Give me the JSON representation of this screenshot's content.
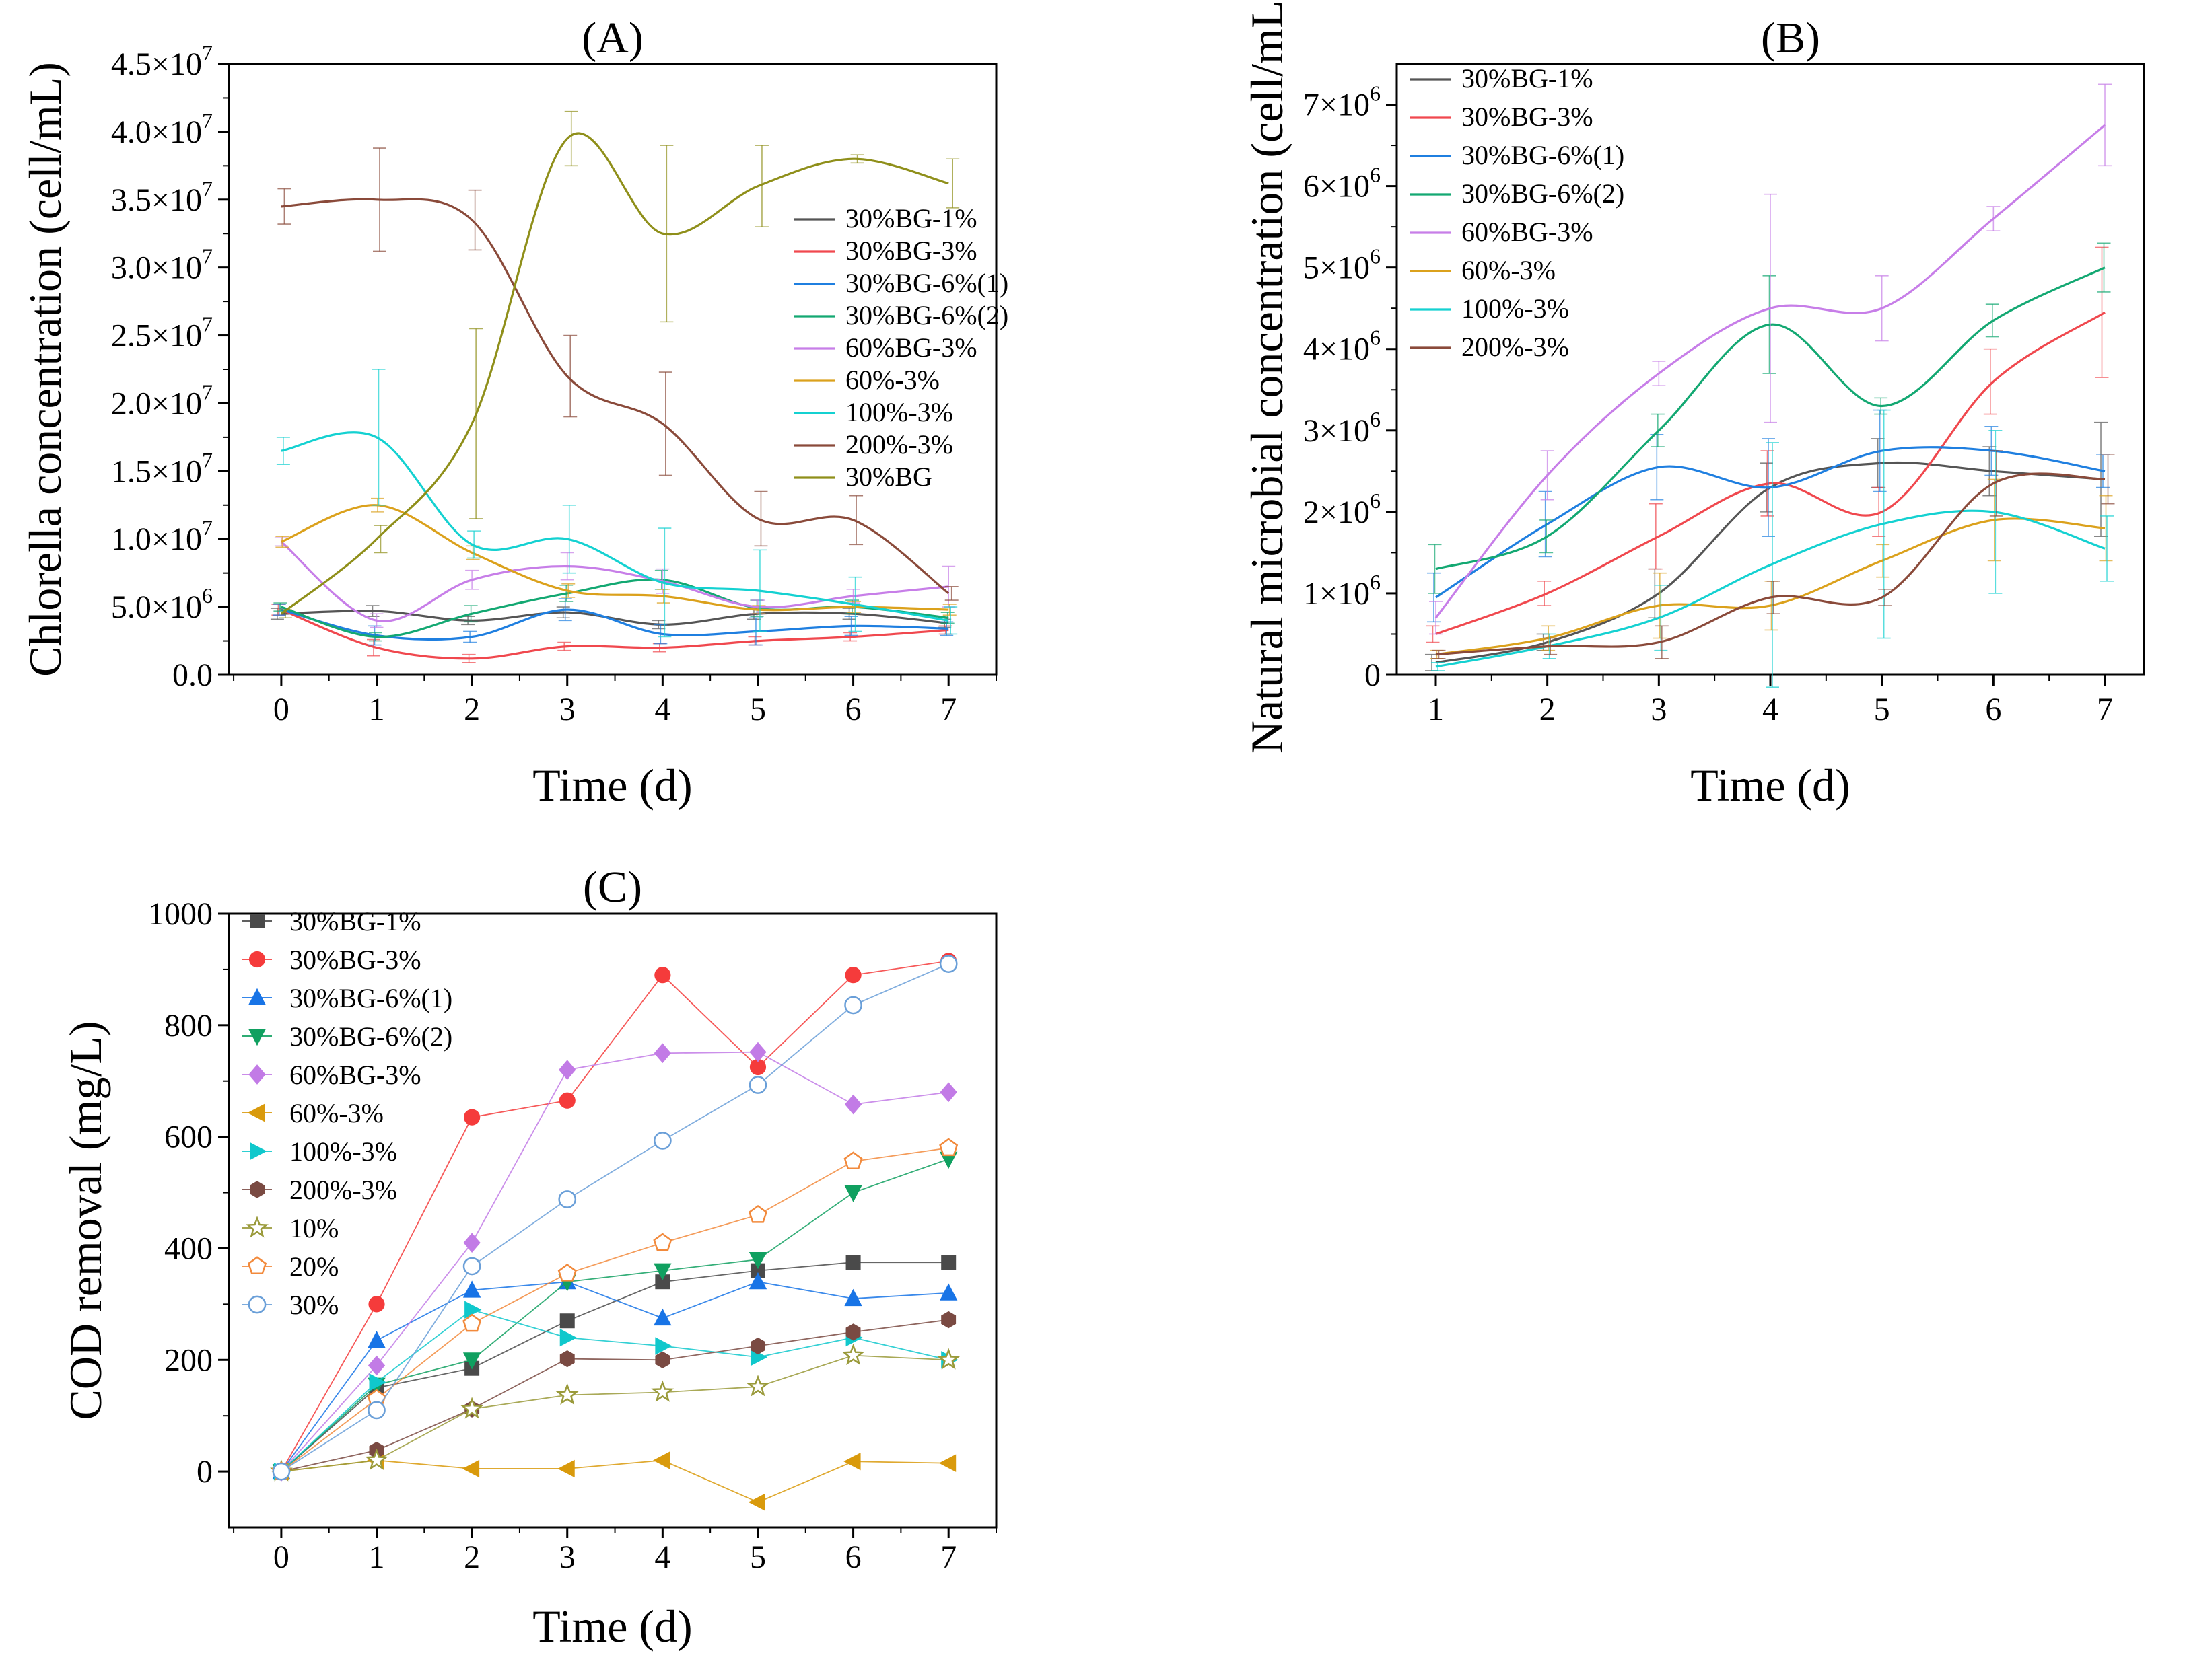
{
  "figure": {
    "description_free": true
  },
  "chart_data": [
    {
      "id": "A",
      "type": "line",
      "title": "(A)",
      "xlabel": "Time (d)",
      "ylabel": "Chlorella concentration (cell/mL)",
      "x": [
        0,
        1,
        2,
        3,
        4,
        5,
        6,
        7
      ],
      "xlim": [
        -0.55,
        7.5
      ],
      "ylim": [
        0,
        45000000
      ],
      "xticks": [
        "0",
        "1",
        "2",
        "3",
        "4",
        "5",
        "6",
        "7"
      ],
      "yticks": [
        {
          "value": 0,
          "mantissa": "0.0",
          "exp": ""
        },
        {
          "value": 5000000,
          "mantissa": "5.0×10",
          "exp": "6"
        },
        {
          "value": 10000000,
          "mantissa": "1.0×10",
          "exp": "7"
        },
        {
          "value": 15000000,
          "mantissa": "1.5×10",
          "exp": "7"
        },
        {
          "value": 20000000,
          "mantissa": "2.0×10",
          "exp": "7"
        },
        {
          "value": 25000000,
          "mantissa": "2.5×10",
          "exp": "7"
        },
        {
          "value": 30000000,
          "mantissa": "3.0×10",
          "exp": "7"
        },
        {
          "value": 35000000,
          "mantissa": "3.5×10",
          "exp": "7"
        },
        {
          "value": 40000000,
          "mantissa": "4.0×10",
          "exp": "7"
        },
        {
          "value": 45000000,
          "mantissa": "4.5×10",
          "exp": "7"
        }
      ],
      "legend_position": "right-middle",
      "series": [
        {
          "name": "30%BG-1%",
          "color": "#555555",
          "values": [
            4500000,
            4700000,
            4000000,
            4600000,
            3700000,
            4500000,
            4500000,
            3800000
          ],
          "errors": [
            400000,
            400000,
            300000,
            400000,
            300000,
            400000,
            400000,
            300000
          ]
        },
        {
          "name": "30%BG-3%",
          "color": "#f0484e",
          "values": [
            4800000,
            2000000,
            1200000,
            2100000,
            2000000,
            2500000,
            2800000,
            3300000
          ],
          "errors": [
            400000,
            600000,
            300000,
            300000,
            300000,
            300000,
            300000,
            300000
          ]
        },
        {
          "name": "30%BG-6%(1)",
          "color": "#1f7fe0",
          "values": [
            4800000,
            2900000,
            2800000,
            4800000,
            3000000,
            3200000,
            3600000,
            3400000
          ],
          "errors": [
            400000,
            700000,
            400000,
            800000,
            700000,
            1000000,
            700000,
            500000
          ]
        },
        {
          "name": "30%BG-6%(2)",
          "color": "#13a872",
          "values": [
            5000000,
            2800000,
            4500000,
            6000000,
            7000000,
            4900000,
            5000000,
            4200000
          ],
          "errors": [
            300000,
            300000,
            600000,
            600000,
            700000,
            600000,
            500000,
            400000
          ]
        },
        {
          "name": "60%BG-3%",
          "color": "#c77ee8",
          "values": [
            9800000,
            4000000,
            7000000,
            8000000,
            6900000,
            5000000,
            5800000,
            6500000
          ],
          "errors": [
            300000,
            500000,
            700000,
            1000000,
            900000,
            500000,
            500000,
            1500000
          ]
        },
        {
          "name": "60%-3%",
          "color": "#dba11c",
          "values": [
            9800000,
            12500000,
            9000000,
            6200000,
            5800000,
            4800000,
            5000000,
            4800000
          ],
          "errors": [
            400000,
            500000,
            500000,
            500000,
            500000,
            300000,
            400000,
            400000
          ]
        },
        {
          "name": "100%-3%",
          "color": "#14d1d1",
          "values": [
            16500000,
            17500000,
            9600000,
            10000000,
            6800000,
            6200000,
            5200000,
            4000000
          ],
          "errors": [
            1000000,
            5000000,
            1000000,
            2500000,
            4000000,
            3000000,
            2000000,
            1000000
          ]
        },
        {
          "name": "200%-3%",
          "color": "#8a4a3a",
          "values": [
            34500000,
            35000000,
            33500000,
            22000000,
            18500000,
            11500000,
            11400000,
            6000000
          ],
          "errors": [
            1300000,
            3800000,
            2200000,
            3000000,
            3800000,
            2000000,
            1800000,
            500000
          ]
        },
        {
          "name": "30%BG",
          "color": "#8f8f1a",
          "values": [
            4500000,
            10000000,
            18500000,
            39500000,
            32500000,
            36000000,
            38000000,
            36200000
          ],
          "errors": [
            300000,
            1000000,
            7000000,
            2000000,
            6500000,
            3000000,
            300000,
            1800000
          ]
        }
      ]
    },
    {
      "id": "B",
      "type": "line",
      "title": "(B)",
      "xlabel": "Time (d)",
      "ylabel": "Natural microbial concentration (cell/mL)",
      "x": [
        1,
        2,
        3,
        4,
        5,
        6,
        7
      ],
      "xlim": [
        0.65,
        7.35
      ],
      "ylim": [
        0,
        7500000
      ],
      "xticks": [
        "1",
        "2",
        "3",
        "4",
        "5",
        "6",
        "7"
      ],
      "yticks": [
        {
          "value": 0,
          "mantissa": "0",
          "exp": ""
        },
        {
          "value": 1000000,
          "mantissa": "1×10",
          "exp": "6"
        },
        {
          "value": 2000000,
          "mantissa": "2×10",
          "exp": "6"
        },
        {
          "value": 3000000,
          "mantissa": "3×10",
          "exp": "6"
        },
        {
          "value": 4000000,
          "mantissa": "4×10",
          "exp": "6"
        },
        {
          "value": 5000000,
          "mantissa": "5×10",
          "exp": "6"
        },
        {
          "value": 6000000,
          "mantissa": "6×10",
          "exp": "6"
        },
        {
          "value": 7000000,
          "mantissa": "7×10",
          "exp": "6"
        }
      ],
      "legend_position": "top-left",
      "series": [
        {
          "name": "30%BG-1%",
          "color": "#555555",
          "values": [
            150000,
            400000,
            1000000,
            2300000,
            2600000,
            2500000,
            2400000
          ],
          "errors": [
            100000,
            100000,
            300000,
            300000,
            300000,
            300000,
            700000
          ]
        },
        {
          "name": "30%BG-3%",
          "color": "#f0484e",
          "values": [
            500000,
            1000000,
            1700000,
            2350000,
            2000000,
            3600000,
            4450000
          ],
          "errors": [
            100000,
            150000,
            400000,
            400000,
            300000,
            400000,
            800000
          ]
        },
        {
          "name": "30%BG-6%(1)",
          "color": "#1f7fe0",
          "values": [
            950000,
            1850000,
            2550000,
            2300000,
            2750000,
            2750000,
            2500000
          ],
          "errors": [
            300000,
            400000,
            400000,
            600000,
            500000,
            300000,
            200000
          ]
        },
        {
          "name": "30%BG-6%(2)",
          "color": "#13a872",
          "values": [
            1300000,
            1700000,
            3000000,
            4300000,
            3300000,
            4350000,
            5000000
          ],
          "errors": [
            300000,
            200000,
            200000,
            600000,
            100000,
            200000,
            300000
          ]
        },
        {
          "name": "60%BG-3%",
          "color": "#c77ee8",
          "values": [
            700000,
            2450000,
            3700000,
            4500000,
            4500000,
            5600000,
            6750000
          ],
          "errors": [
            200000,
            300000,
            150000,
            1400000,
            400000,
            150000,
            500000
          ]
        },
        {
          "name": "60%-3%",
          "color": "#dba11c",
          "values": [
            250000,
            450000,
            850000,
            850000,
            1400000,
            1900000,
            1800000
          ],
          "errors": [
            50000,
            150000,
            400000,
            300000,
            200000,
            500000,
            400000
          ]
        },
        {
          "name": "100%-3%",
          "color": "#14d1d1",
          "values": [
            100000,
            350000,
            700000,
            1350000,
            1850000,
            2000000,
            1550000
          ],
          "errors": [
            50000,
            150000,
            400000,
            1500000,
            1400000,
            1000000,
            400000
          ]
        },
        {
          "name": "200%-3%",
          "color": "#8a4a3a",
          "values": [
            250000,
            350000,
            400000,
            950000,
            950000,
            2350000,
            2400000
          ],
          "errors": [
            50000,
            100000,
            200000,
            200000,
            100000,
            400000,
            300000
          ]
        }
      ]
    },
    {
      "id": "C",
      "type": "scatter",
      "title": "(C)",
      "xlabel": "Time (d)",
      "ylabel": "COD removal (mg/L)",
      "x": [
        0,
        1,
        2,
        3,
        4,
        5,
        6,
        7
      ],
      "xlim": [
        -0.55,
        7.5
      ],
      "ylim": [
        -100,
        1000
      ],
      "xticks": [
        "0",
        "1",
        "2",
        "3",
        "4",
        "5",
        "6",
        "7"
      ],
      "yticks": [
        {
          "value": 0,
          "mantissa": "0",
          "exp": ""
        },
        {
          "value": 200,
          "mantissa": "200",
          "exp": ""
        },
        {
          "value": 400,
          "mantissa": "400",
          "exp": ""
        },
        {
          "value": 600,
          "mantissa": "600",
          "exp": ""
        },
        {
          "value": 800,
          "mantissa": "800",
          "exp": ""
        },
        {
          "value": 1000,
          "mantissa": "1000",
          "exp": ""
        }
      ],
      "legend_position": "top-left",
      "series": [
        {
          "name": "30%BG-1%",
          "color": "#4a4a4a",
          "marker": "square",
          "values": [
            0,
            150,
            185,
            270,
            340,
            360,
            375,
            375
          ]
        },
        {
          "name": "30%BG-3%",
          "color": "#f53b3b",
          "marker": "circle",
          "values": [
            0,
            300,
            635,
            665,
            890,
            725,
            890,
            915
          ]
        },
        {
          "name": "30%BG-6%(1)",
          "color": "#1874e6",
          "marker": "triangle-up",
          "values": [
            0,
            235,
            325,
            340,
            275,
            340,
            310,
            320
          ]
        },
        {
          "name": "30%BG-6%(2)",
          "color": "#10a060",
          "marker": "triangle-down",
          "values": [
            0,
            155,
            200,
            340,
            360,
            380,
            500,
            560
          ]
        },
        {
          "name": "60%BG-3%",
          "color": "#c27be6",
          "marker": "diamond",
          "values": [
            0,
            190,
            410,
            720,
            750,
            752,
            658,
            680
          ]
        },
        {
          "name": "60%-3%",
          "color": "#d99a0c",
          "marker": "triangle-left",
          "values": [
            0,
            20,
            5,
            5,
            20,
            -55,
            18,
            15
          ]
        },
        {
          "name": "100%-3%",
          "color": "#10c8cc",
          "marker": "triangle-right",
          "values": [
            0,
            160,
            290,
            240,
            225,
            205,
            240,
            200
          ]
        },
        {
          "name": "200%-3%",
          "color": "#7a4a42",
          "marker": "hexagon",
          "values": [
            0,
            38,
            112,
            202,
            200,
            225,
            250,
            272
          ]
        },
        {
          "name": "10%",
          "color": "#9a9a3a",
          "marker": "star-open",
          "values": [
            0,
            20,
            112,
            137,
            142,
            152,
            208,
            200
          ]
        },
        {
          "name": "20%",
          "color": "#f28a3c",
          "marker": "pentagon-open",
          "values": [
            0,
            130,
            265,
            355,
            410,
            460,
            556,
            580
          ]
        },
        {
          "name": "30%",
          "color": "#6a9fd8",
          "marker": "circle-open",
          "values": [
            0,
            110,
            368,
            488,
            593,
            693,
            836,
            910
          ]
        }
      ]
    }
  ]
}
